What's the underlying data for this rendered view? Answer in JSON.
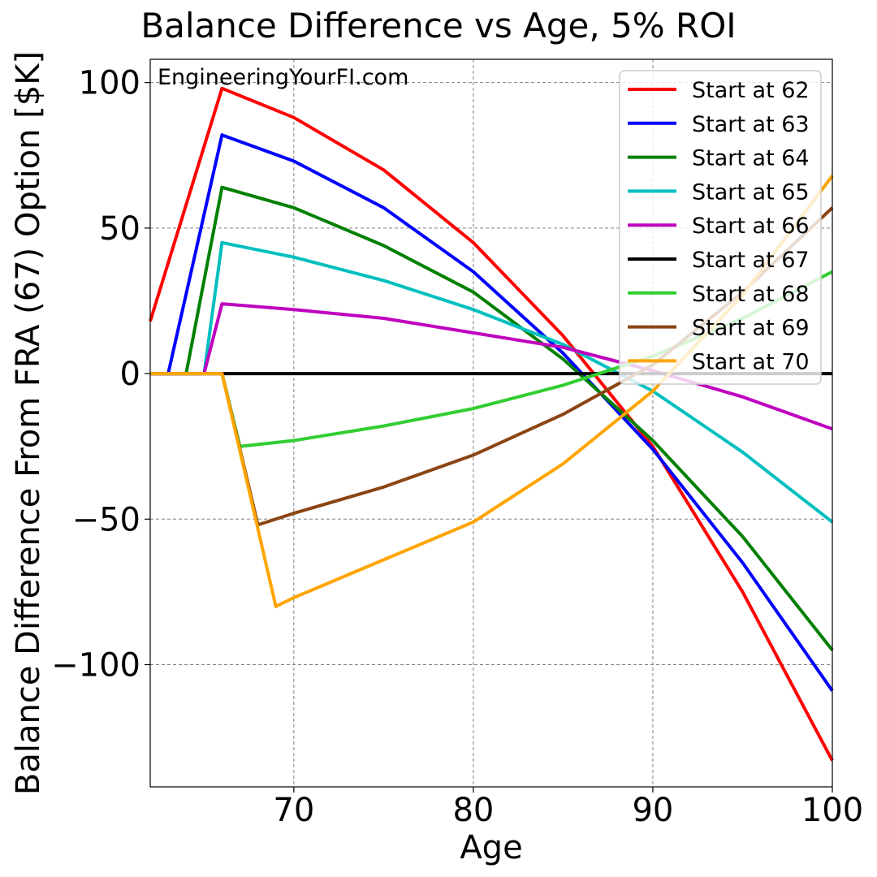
{
  "chart_data": {
    "type": "line",
    "title": "Balance Difference vs Age, 5% ROI",
    "xlabel": "Age",
    "ylabel": "Balance Difference From FRA (67) Option [$K]",
    "watermark": "EngineeringYourFI.com",
    "xlim": [
      62,
      100
    ],
    "ylim": [
      -142,
      108
    ],
    "xticks": [
      70,
      80,
      90,
      100
    ],
    "yticks": [
      100,
      50,
      0,
      -50,
      -100
    ],
    "ytick_labels": [
      "100",
      "50",
      "0",
      "−50",
      "−100"
    ],
    "grid": true,
    "legend_position": "top-right",
    "series": [
      {
        "name": "Start at 62",
        "color": "#ff0000",
        "x": [
          62,
          66,
          70,
          75,
          80,
          85,
          90,
          95,
          100
        ],
        "y": [
          18,
          98,
          88,
          70,
          45,
          13,
          -25,
          -75,
          -133
        ]
      },
      {
        "name": "Start at 63",
        "color": "#0000ff",
        "x": [
          62,
          63,
          66,
          70,
          75,
          80,
          85,
          90,
          95,
          100
        ],
        "y": [
          0,
          0,
          82,
          73,
          57,
          35,
          7,
          -26,
          -65,
          -109
        ]
      },
      {
        "name": "Start at 64",
        "color": "#008000",
        "x": [
          62,
          64,
          66,
          70,
          75,
          80,
          85,
          90,
          95,
          100
        ],
        "y": [
          0,
          0,
          64,
          57,
          44,
          28,
          5,
          -23,
          -56,
          -95
        ]
      },
      {
        "name": "Start at 65",
        "color": "#00bfbf",
        "x": [
          62,
          65,
          66,
          70,
          75,
          80,
          85,
          90,
          95,
          100
        ],
        "y": [
          0,
          0,
          45,
          40,
          32,
          22,
          10,
          -6,
          -27,
          -51
        ]
      },
      {
        "name": "Start at 66",
        "color": "#bf00bf",
        "x": [
          62,
          65,
          66,
          70,
          75,
          80,
          85,
          90,
          95,
          100
        ],
        "y": [
          0,
          0,
          24,
          22,
          19,
          14,
          9,
          1,
          -8,
          -19
        ]
      },
      {
        "name": "Start at 67",
        "color": "#000000",
        "x": [
          62,
          100
        ],
        "y": [
          0,
          0
        ]
      },
      {
        "name": "Start at 68",
        "color": "#32cd32",
        "x": [
          62,
          66,
          67,
          70,
          75,
          80,
          85,
          90,
          95,
          100
        ],
        "y": [
          0,
          0,
          -25,
          -23,
          -18,
          -12,
          -4,
          6,
          19,
          35
        ]
      },
      {
        "name": "Start at 69",
        "color": "#8b4513",
        "x": [
          62,
          66,
          68,
          70,
          75,
          80,
          85,
          90,
          95,
          100
        ],
        "y": [
          0,
          0,
          -52,
          -48,
          -39,
          -28,
          -14,
          3,
          28,
          57
        ]
      },
      {
        "name": "Start at 70",
        "color": "#ffa500",
        "x": [
          62,
          66,
          69,
          70,
          75,
          80,
          85,
          90,
          95,
          100
        ],
        "y": [
          0,
          0,
          -80,
          -77,
          -64,
          -51,
          -31,
          -6,
          27,
          68
        ]
      }
    ]
  }
}
